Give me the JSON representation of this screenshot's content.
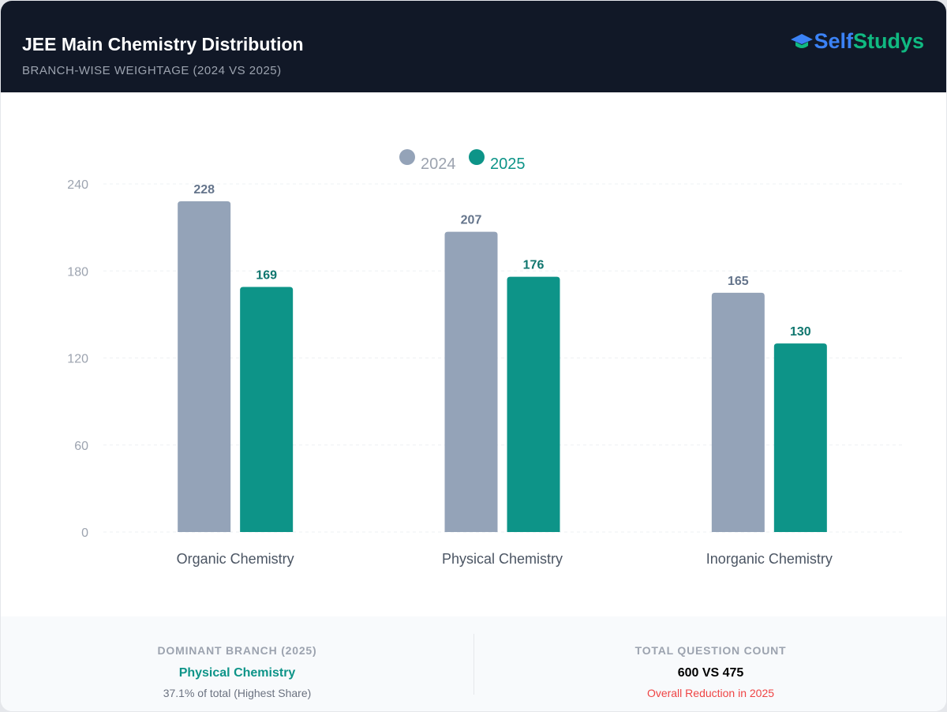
{
  "header": {
    "title": "JEE Main Chemistry Distribution",
    "subtitle": "BRANCH-WISE WEIGHTAGE (2024 VS 2025)",
    "logo_part1": "Self",
    "logo_part2": "Studys",
    "logo_icon": "graduation-cap-icon"
  },
  "chart_data": {
    "type": "bar",
    "categories": [
      "Organic Chemistry",
      "Physical Chemistry",
      "Inorganic Chemistry"
    ],
    "series": [
      {
        "name": "2024",
        "values": [
          228,
          207,
          165
        ],
        "color": "#94a3b8",
        "label_color": "#64748b"
      },
      {
        "name": "2025",
        "values": [
          169,
          176,
          130
        ],
        "color": "#0d9488",
        "label_color": "#0f766e"
      }
    ],
    "ylim": [
      0,
      240
    ],
    "yticks": [
      "0",
      "60",
      "120",
      "180",
      "240"
    ],
    "grid": true,
    "legend": "top-center"
  },
  "footer": {
    "left": {
      "label": "DOMINANT BRANCH (2025)",
      "value": "Physical Chemistry",
      "note": "37.1% of total (Highest Share)"
    },
    "right": {
      "label": "TOTAL QUESTION COUNT",
      "value": "600 VS 475",
      "note": "Overall Reduction in 2025"
    }
  }
}
